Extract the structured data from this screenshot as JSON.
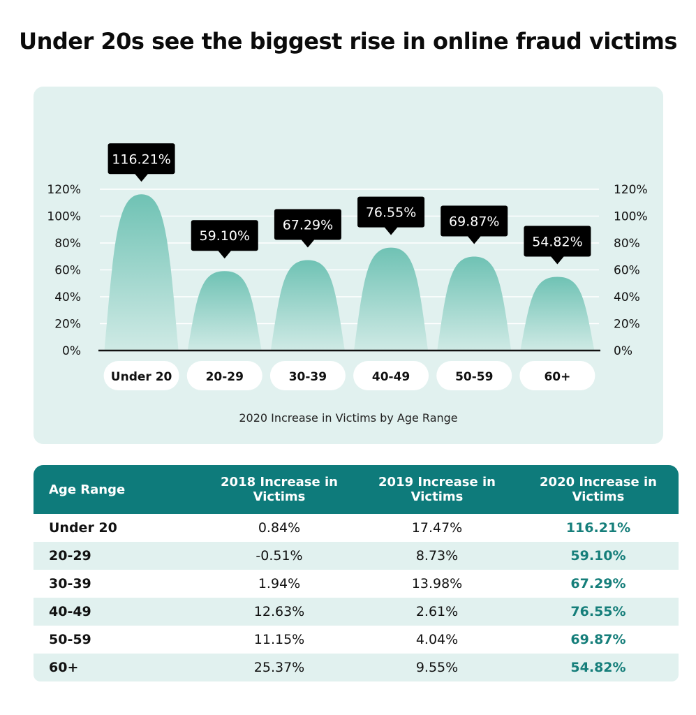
{
  "title": "Under 20s see the biggest rise in online fraud victims",
  "chart_data": {
    "type": "bar",
    "shape": "rounded-peak",
    "categories": [
      "Under 20",
      "20-29",
      "30-39",
      "40-49",
      "50-59",
      "60+"
    ],
    "values": [
      116.21,
      59.1,
      67.29,
      76.55,
      69.87,
      54.82
    ],
    "value_labels": [
      "116.21%",
      "59.10%",
      "67.29%",
      "76.55%",
      "69.87%",
      "54.82%"
    ],
    "xlabel": "2020 Increase in Victims by Age Range",
    "ylabel": "",
    "ylim": [
      0,
      120
    ],
    "y_ticks": [
      0,
      20,
      40,
      60,
      80,
      100,
      120
    ],
    "y_tick_labels": [
      "0%",
      "20%",
      "40%",
      "60%",
      "80%",
      "100%",
      "120%"
    ],
    "y_axis_sides": "left-and-right",
    "grid": true,
    "colors": {
      "bar_top": "#6fc2b4",
      "bar_bottom": "#cfeae5",
      "panel": "#e1f1ef",
      "label_box": "#000000",
      "label_text": "#ffffff"
    }
  },
  "table": {
    "headers": [
      "Age Range",
      "2018 Increase in Victims",
      "2019 Increase in Victims",
      "2020 Increase in Victims"
    ],
    "rows": [
      [
        "Under 20",
        "0.84%",
        "17.47%",
        "116.21%"
      ],
      [
        "20-29",
        "-0.51%",
        "8.73%",
        "59.10%"
      ],
      [
        "30-39",
        "1.94%",
        "13.98%",
        "67.29%"
      ],
      [
        "40-49",
        "12.63%",
        "2.61%",
        "76.55%"
      ],
      [
        "50-59",
        "11.15%",
        "4.04%",
        "69.87%"
      ],
      [
        "60+",
        "25.37%",
        "9.55%",
        "54.82%"
      ]
    ],
    "colors": {
      "header_bg": "#0e7b7b",
      "highlight_text": "#157e7a",
      "stripe": "#e1f1ef"
    }
  }
}
